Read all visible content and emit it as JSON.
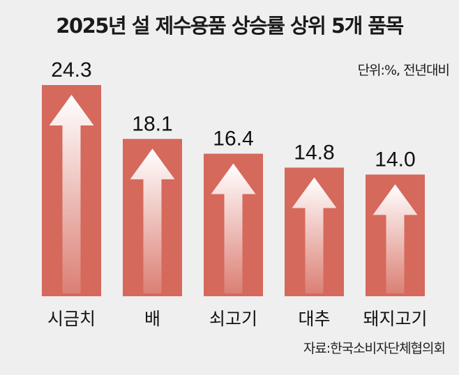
{
  "chart_data": {
    "type": "bar",
    "title": "2025년 설 제수용품 상승률 상위 5개 품목",
    "unit_note": "단위:%, 전년대비",
    "categories": [
      "시금치",
      "배",
      "쇠고기",
      "대추",
      "돼지고기"
    ],
    "values": [
      24.3,
      18.1,
      16.4,
      14.8,
      14.0
    ],
    "value_labels": [
      "24.3",
      "18.1",
      "16.4",
      "14.8",
      "14.0"
    ],
    "ylim": [
      0,
      24.3
    ],
    "grid": false,
    "source": "자료:한국소비자단체협의회",
    "colors": {
      "bar": "#d5695c",
      "arrow": "#ffffff",
      "background": "#efefef"
    }
  }
}
